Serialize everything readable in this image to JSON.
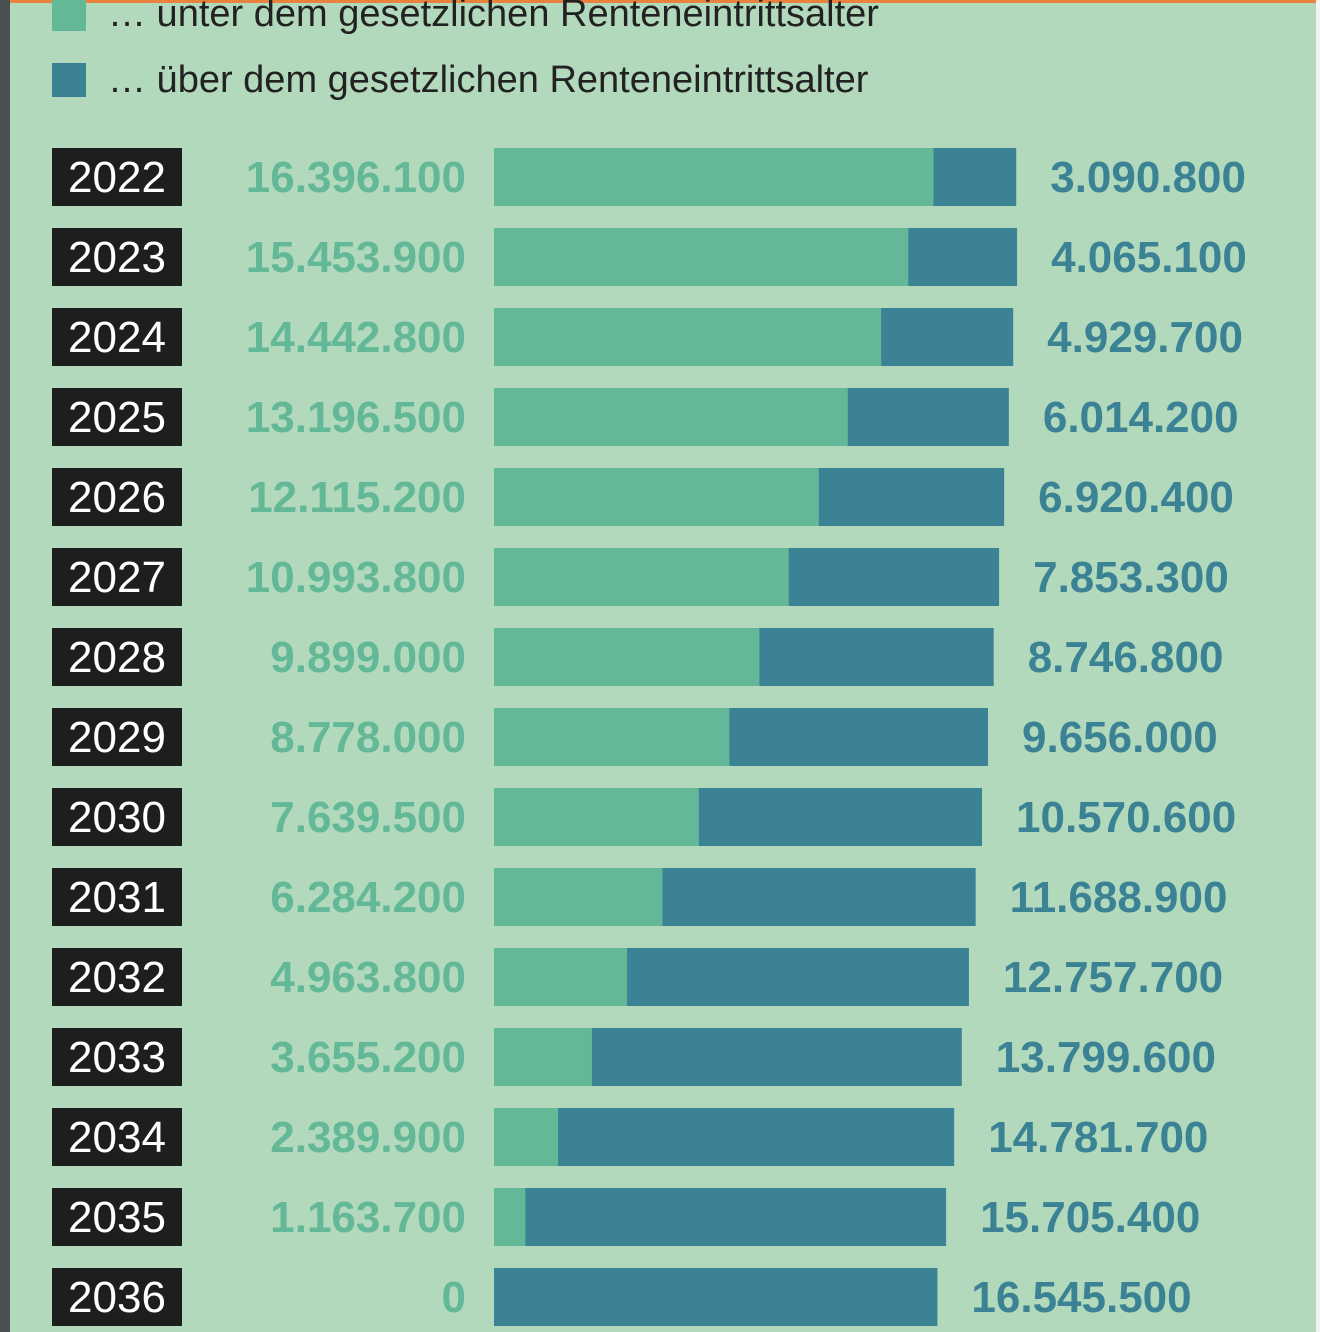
{
  "legend": {
    "below_label": "… unter dem gesetzlichen Renteneintrittsalter",
    "above_label": "… über dem gesetzlichen Renteneintrittsalter"
  },
  "colors": {
    "background": "#b3d9bd",
    "below": "#63b897",
    "above": "#3b8394",
    "year_badge": "#1e1e1e",
    "below_text": "#63b897",
    "above_text": "#3b8394"
  },
  "chart_data": {
    "type": "bar",
    "stacked": true,
    "orientation": "horizontal",
    "categories": [
      "2022",
      "2023",
      "2024",
      "2025",
      "2026",
      "2027",
      "2028",
      "2029",
      "2030",
      "2031",
      "2032",
      "2033",
      "2034",
      "2035",
      "2036"
    ],
    "series": [
      {
        "name": "… unter dem gesetzlichen Renteneintrittsalter",
        "values": [
          16396100,
          15453900,
          14442800,
          13196500,
          12115200,
          10993800,
          9899000,
          8778000,
          7639500,
          6284200,
          4963800,
          3655200,
          2389900,
          1163700,
          0
        ],
        "labels": [
          "16.396.100",
          "15.453.900",
          "14.442.800",
          "13.196.500",
          "12.115.200",
          "10.993.800",
          "9.899.000",
          "8.778.000",
          "7.639.500",
          "6.284.200",
          "4.963.800",
          "3.655.200",
          "2.389.900",
          "1.163.700",
          "0"
        ]
      },
      {
        "name": "… über dem gesetzlichen Renteneintrittsalter",
        "values": [
          3090800,
          4065100,
          4929700,
          6014200,
          6920400,
          7853300,
          8746800,
          9656000,
          10570600,
          11688900,
          12757700,
          13799600,
          14781700,
          15705400,
          16545500
        ],
        "labels": [
          "3.090.800",
          "4.065.100",
          "4.929.700",
          "6.014.200",
          "6.920.400",
          "7.853.300",
          "8.746.800",
          "9.656.000",
          "10.570.600",
          "11.688.900",
          "12.757.700",
          "13.799.600",
          "14.781.700",
          "15.705.400",
          "16.545.500"
        ]
      }
    ]
  }
}
